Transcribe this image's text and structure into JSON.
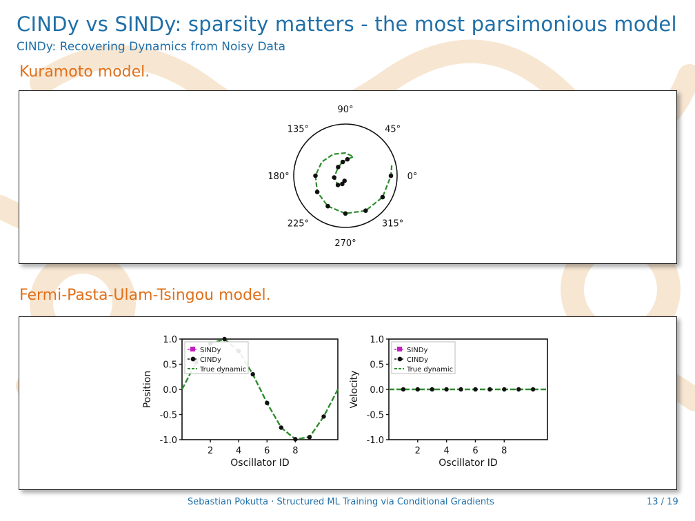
{
  "slide": {
    "title": "CINDy vs SINDy: sparsity matters - the most parsimonious model",
    "subtitle": "CINDy: Recovering Dynamics from Noisy Data"
  },
  "sections": {
    "kuramoto": {
      "heading": "Kuramoto model."
    },
    "fput": {
      "heading": "Fermi-Pasta-Ulam-Tsingou model."
    }
  },
  "footer": {
    "author_talk": "Sebastian Pokutta · Structured ML Training via Conditional Gradients",
    "page": "13 / 19"
  },
  "colors": {
    "title": "#1f6fa8",
    "heading": "#e0701a",
    "true_dynamic": "#2e8b2e",
    "cindy": "#111111",
    "sindy": "#c020c0"
  },
  "chart_data": [
    {
      "type": "scatter",
      "projection": "polar",
      "angle_labels": [
        "0°",
        "45°",
        "90°",
        "135°",
        "180°",
        "225°",
        "270°",
        "315°"
      ],
      "angle_ticks_deg": [
        0,
        45,
        90,
        135,
        180,
        225,
        270,
        315
      ],
      "r_max": 1.0,
      "series": [
        {
          "style": "dashed-line-green",
          "theta_deg": [
            260,
            249,
            231,
            189,
            130,
            101,
            83,
            72,
            67,
            90,
            120,
            150,
            180,
            210,
            240,
            270,
            300,
            330,
            360,
            375
          ],
          "r": [
            0.1,
            0.17,
            0.23,
            0.22,
            0.22,
            0.27,
            0.32,
            0.37,
            0.4,
            0.44,
            0.48,
            0.53,
            0.58,
            0.63,
            0.68,
            0.73,
            0.78,
            0.83,
            0.88,
            0.93
          ]
        },
        {
          "style": "markers-black",
          "theta_deg": [
            260,
            249,
            231,
            189,
            130,
            101,
            83,
            180,
            210,
            240,
            270,
            300,
            330,
            360
          ],
          "r": [
            0.1,
            0.17,
            0.23,
            0.22,
            0.22,
            0.27,
            0.32,
            0.58,
            0.63,
            0.68,
            0.73,
            0.78,
            0.83,
            0.88
          ]
        }
      ]
    },
    {
      "type": "line",
      "xlabel": "Oscillator ID",
      "ylabel": "Position",
      "xlim": [
        0,
        11
      ],
      "ylim": [
        -1.0,
        1.0
      ],
      "xticks": [
        2,
        4,
        6,
        8
      ],
      "xtick_labels": [
        "2",
        "4",
        "6",
        "8"
      ],
      "yticks": [
        1.0,
        0.5,
        0.0,
        -0.5,
        -1.0
      ],
      "ytick_labels": [
        "1.0",
        "0.5",
        "0.0",
        "-0.5",
        "-1.0"
      ],
      "legend": {
        "placement": "top-left",
        "entries": [
          "SINDy",
          "CINDy",
          "True dynamic"
        ]
      },
      "x": [
        0,
        1,
        2,
        3,
        4,
        5,
        6,
        7,
        8,
        9,
        10,
        11
      ],
      "series": [
        {
          "name": "SINDy",
          "values": [
            0.0,
            0.54,
            0.91,
            1.0,
            0.76,
            0.3,
            -0.27,
            -0.76,
            -0.99,
            -0.95,
            -0.54,
            0.0
          ]
        },
        {
          "name": "CINDy",
          "values": [
            0.0,
            0.54,
            0.91,
            1.0,
            0.76,
            0.3,
            -0.27,
            -0.76,
            -0.99,
            -0.95,
            -0.54,
            0.0
          ]
        },
        {
          "name": "True dynamic",
          "values": [
            0.0,
            0.54,
            0.91,
            1.0,
            0.76,
            0.3,
            -0.27,
            -0.76,
            -0.99,
            -0.95,
            -0.54,
            0.0
          ]
        }
      ]
    },
    {
      "type": "line",
      "xlabel": "Oscillator ID",
      "ylabel": "Velocity",
      "xlim": [
        0,
        11
      ],
      "ylim": [
        -1.0,
        1.0
      ],
      "xticks": [
        2,
        4,
        6,
        8
      ],
      "xtick_labels": [
        "2",
        "4",
        "6",
        "8"
      ],
      "yticks": [
        1.0,
        0.5,
        0.0,
        -0.5,
        -1.0
      ],
      "ytick_labels": [
        "1.0",
        "0.5",
        "0.0",
        "-0.5",
        "-1.0"
      ],
      "legend": {
        "placement": "top-left",
        "entries": [
          "SINDy",
          "CINDy",
          "True dynamic"
        ]
      },
      "x": [
        0,
        1,
        2,
        3,
        4,
        5,
        6,
        7,
        8,
        9,
        10,
        11
      ],
      "series": [
        {
          "name": "SINDy",
          "values": [
            0,
            0,
            0,
            0,
            0,
            0,
            0,
            0,
            0,
            0,
            0,
            0
          ]
        },
        {
          "name": "CINDy",
          "values": [
            0,
            0,
            0,
            0,
            0,
            0,
            0,
            0,
            0,
            0,
            0,
            0
          ]
        },
        {
          "name": "True dynamic",
          "values": [
            0,
            0,
            0,
            0,
            0,
            0,
            0,
            0,
            0,
            0,
            0,
            0
          ]
        }
      ]
    }
  ]
}
